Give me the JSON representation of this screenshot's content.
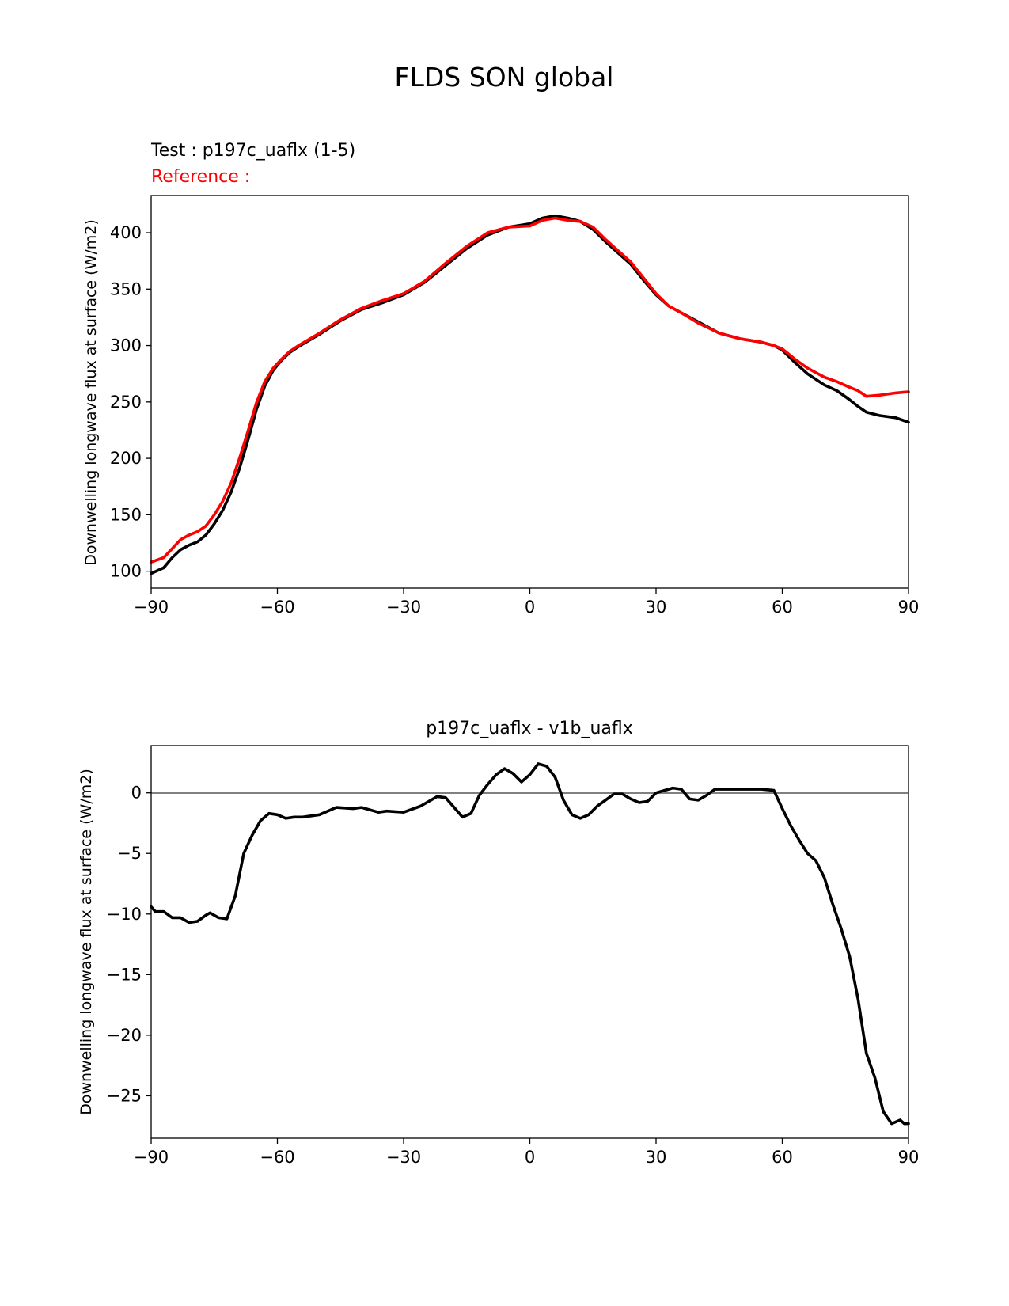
{
  "figure": {
    "title": "FLDS SON global"
  },
  "colors": {
    "test": "#000000",
    "reference": "#ff0000",
    "zero_line": "#808080"
  },
  "chart_data": [
    {
      "type": "line",
      "label_test": "Test : p197c_uaflx (1-5)",
      "label_reference": "Reference :",
      "ylabel": "Downwelling longwave flux at surface (W/m2)",
      "xlim": [
        -90,
        90
      ],
      "ylim": [
        85,
        433
      ],
      "xticks": [
        "−90",
        "−60",
        "−30",
        "0",
        "30",
        "60",
        "90"
      ],
      "xtick_values": [
        -90,
        -60,
        -30,
        0,
        30,
        60,
        90
      ],
      "yticks": [
        "100",
        "150",
        "200",
        "250",
        "300",
        "350",
        "400"
      ],
      "ytick_values": [
        100,
        150,
        200,
        250,
        300,
        350,
        400
      ],
      "x": [
        -90,
        -87,
        -85,
        -83,
        -81,
        -79,
        -77,
        -75,
        -73,
        -71,
        -69,
        -67,
        -65,
        -63,
        -61,
        -59,
        -57,
        -55,
        -50,
        -45,
        -40,
        -35,
        -30,
        -25,
        -20,
        -15,
        -10,
        -5,
        0,
        3,
        6,
        9,
        12,
        15,
        18,
        21,
        24,
        27,
        30,
        33,
        36,
        40,
        45,
        50,
        55,
        58,
        60,
        63,
        66,
        70,
        73,
        76,
        78,
        80,
        83,
        87,
        90
      ],
      "series": [
        {
          "name": "Test",
          "values": [
            98,
            103,
            112,
            119,
            123,
            126,
            132,
            142,
            154,
            170,
            191,
            216,
            243,
            264,
            278,
            287,
            294,
            299,
            310,
            322,
            332,
            338,
            345,
            356,
            371,
            386,
            398,
            405,
            408,
            413,
            415,
            413,
            410,
            403,
            392,
            382,
            372,
            358,
            345,
            335,
            329,
            321,
            311,
            306,
            303,
            300,
            296,
            285,
            275,
            265,
            260,
            252,
            246,
            241,
            238,
            236,
            232
          ]
        },
        {
          "name": "Reference",
          "values": [
            108,
            112,
            120,
            128,
            132,
            135,
            140,
            150,
            162,
            178,
            200,
            224,
            249,
            268,
            280,
            288,
            295,
            300,
            311,
            323,
            333,
            340,
            346,
            357,
            373,
            388,
            400,
            405,
            406,
            411,
            413,
            411,
            410,
            405,
            394,
            384,
            374,
            360,
            346,
            335,
            329,
            320,
            311,
            306,
            303,
            300,
            297,
            288,
            280,
            272,
            268,
            263,
            260,
            255,
            256,
            258,
            259
          ]
        }
      ]
    },
    {
      "type": "line",
      "title": "p197c_uaflx - v1b_uaflx",
      "ylabel": "Downwelling longwave flux at surface (W/m2)",
      "xlim": [
        -90,
        90
      ],
      "ylim": [
        -28.5,
        3.9
      ],
      "xticks": [
        "−90",
        "−60",
        "−30",
        "0",
        "30",
        "60",
        "90"
      ],
      "xtick_values": [
        -90,
        -60,
        -30,
        0,
        30,
        60,
        90
      ],
      "yticks": [
        "0",
        "−5",
        "−10",
        "−15",
        "−20",
        "−25"
      ],
      "ytick_values": [
        0,
        -5,
        -10,
        -15,
        -20,
        -25
      ],
      "zero_line": true,
      "x": [
        -90,
        -89,
        -87,
        -85,
        -83,
        -81,
        -79,
        -77,
        -76,
        -74,
        -72,
        -70,
        -68,
        -66,
        -64,
        -62,
        -60,
        -58,
        -56,
        -54,
        -50,
        -46,
        -42,
        -40,
        -36,
        -34,
        -30,
        -26,
        -22,
        -20,
        -18,
        -16,
        -14,
        -12,
        -10,
        -8,
        -6,
        -4,
        -2,
        0,
        2,
        4,
        6,
        8,
        10,
        12,
        14,
        16,
        18,
        20,
        22,
        24,
        26,
        28,
        30,
        32,
        34,
        36,
        38,
        40,
        42,
        44,
        46,
        48,
        50,
        52,
        55,
        58,
        60,
        62,
        64,
        66,
        68,
        70,
        72,
        74,
        76,
        78,
        80,
        82,
        84,
        86,
        88,
        89,
        90
      ],
      "series": [
        {
          "name": "",
          "values": [
            -9.4,
            -9.8,
            -9.8,
            -10.3,
            -10.3,
            -10.7,
            -10.6,
            -10.1,
            -9.9,
            -10.3,
            -10.4,
            -8.5,
            -5.0,
            -3.5,
            -2.3,
            -1.7,
            -1.8,
            -2.1,
            -2.0,
            -2.0,
            -1.8,
            -1.2,
            -1.3,
            -1.2,
            -1.6,
            -1.5,
            -1.6,
            -1.1,
            -0.3,
            -0.4,
            -1.2,
            -2.0,
            -1.7,
            -0.2,
            0.7,
            1.5,
            2.0,
            1.6,
            0.9,
            1.5,
            2.4,
            2.2,
            1.3,
            -0.6,
            -1.8,
            -2.1,
            -1.8,
            -1.1,
            -0.6,
            -0.1,
            -0.1,
            -0.5,
            -0.8,
            -0.7,
            0.0,
            0.2,
            0.4,
            0.3,
            -0.5,
            -0.6,
            -0.2,
            0.3,
            0.3,
            0.3,
            0.3,
            0.3,
            0.3,
            0.2,
            -1.3,
            -2.7,
            -3.9,
            -5.0,
            -5.6,
            -7.0,
            -9.2,
            -11.2,
            -13.5,
            -17.0,
            -21.5,
            -23.5,
            -26.3,
            -27.3,
            -27.0,
            -27.3,
            -27.3
          ]
        }
      ]
    }
  ]
}
